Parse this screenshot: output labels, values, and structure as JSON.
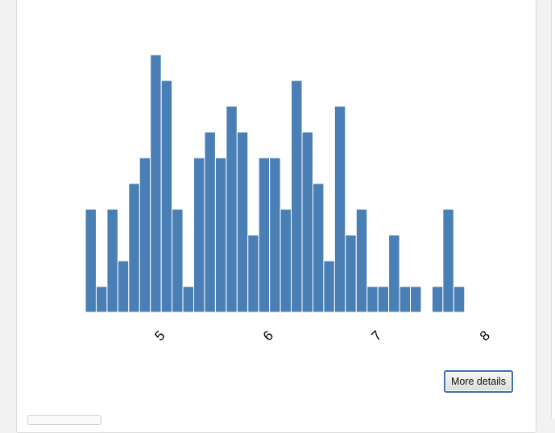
{
  "colors": {
    "bar": "#4a7fb5",
    "bar_stroke": "#ffffff",
    "button_border": "#3f6fb0"
  },
  "buttons": {
    "more_details": "More details"
  },
  "chart_data": {
    "type": "bar",
    "subtype": "histogram",
    "title": "",
    "xlabel": "",
    "ylabel": "",
    "bin_width": 0.1,
    "xlim": [
      4.2,
      8.2
    ],
    "ylim": [
      0,
      10
    ],
    "grid": false,
    "x_ticks": [
      5,
      6,
      7,
      8
    ],
    "x_tick_labels": [
      "5",
      "6",
      "7",
      "8"
    ],
    "bins_start": [
      4.3,
      4.4,
      4.5,
      4.6,
      4.7,
      4.8,
      4.9,
      5.0,
      5.1,
      5.2,
      5.3,
      5.4,
      5.5,
      5.6,
      5.7,
      5.8,
      5.9,
      6.0,
      6.1,
      6.2,
      6.3,
      6.4,
      6.5,
      6.6,
      6.7,
      6.8,
      6.9,
      7.0,
      7.1,
      7.2,
      7.3,
      7.4,
      7.5,
      7.6,
      7.7,
      7.8,
      7.9
    ],
    "values": [
      4,
      1,
      4,
      2,
      5,
      6,
      10,
      9,
      4,
      1,
      6,
      7,
      6,
      8,
      7,
      3,
      6,
      6,
      4,
      9,
      7,
      5,
      2,
      8,
      3,
      4,
      1,
      1,
      3,
      1,
      1,
      0,
      1,
      4,
      1,
      0,
      0
    ]
  }
}
